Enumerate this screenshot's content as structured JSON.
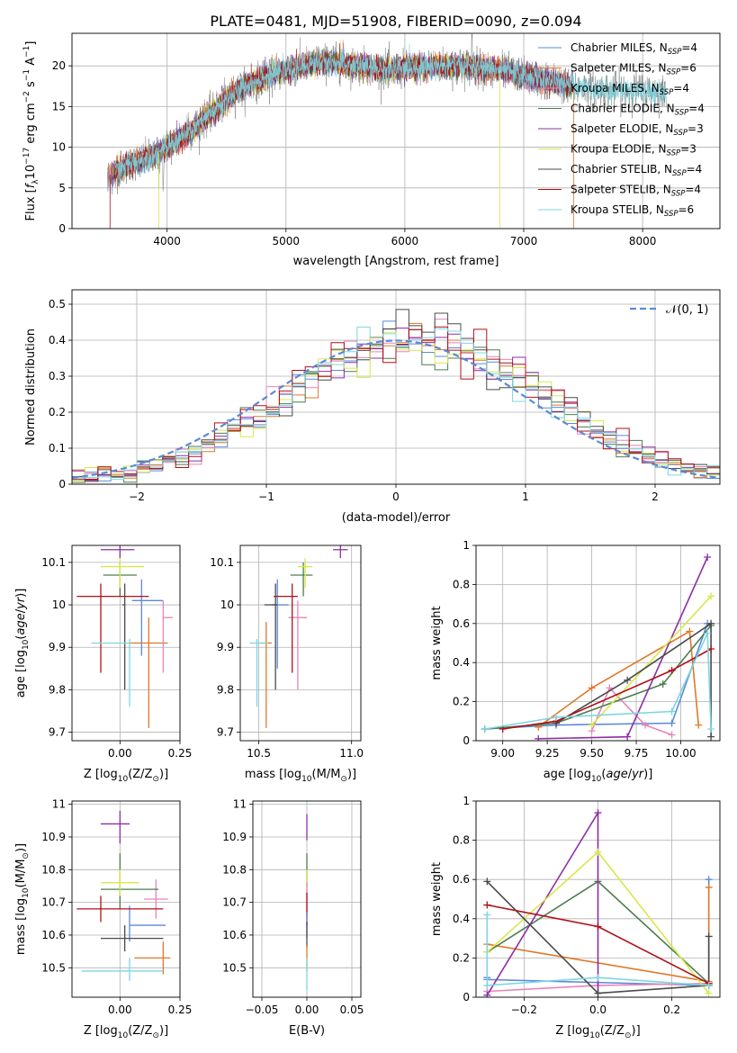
{
  "title": "PLATE=0481, MJD=51908, FIBERID=0090, z=0.094",
  "colors": {
    "chabrier_miles": "#5b8ad6",
    "salpeter_miles": "#e0782a",
    "kroupa_miles": "#e884b8",
    "chabrier_elodie": "#4e7d4e",
    "salpeter_elodie": "#8e2fa6",
    "kroupa_elodie": "#d8e84a",
    "chabrier_stelib": "#4a4a4a",
    "salpeter_stelib": "#b01018",
    "kroupa_stelib": "#7dd6e2",
    "data": "#808080",
    "normal": "#5b8ad6",
    "grid": "#b0b0b0"
  },
  "legend": {
    "entries": [
      {
        "pre": "Chabrier MILES, N",
        "sub": "SSP",
        "post": "=4",
        "color": "chabrier_miles"
      },
      {
        "pre": "Salpeter MILES, N",
        "sub": "SSP",
        "post": "=6",
        "color": "salpeter_miles"
      },
      {
        "pre": "Kroupa MILES, N",
        "sub": "SSP",
        "post": "=4",
        "color": "kroupa_miles"
      },
      {
        "pre": "Chabrier ELODIE, N",
        "sub": "SSP",
        "post": "=4",
        "color": "chabrier_elodie"
      },
      {
        "pre": "Salpeter ELODIE, N",
        "sub": "SSP",
        "post": "=3",
        "color": "salpeter_elodie"
      },
      {
        "pre": "Kroupa ELODIE, N",
        "sub": "SSP",
        "post": "=3",
        "color": "kroupa_elodie"
      },
      {
        "pre": "Chabrier STELIB, N",
        "sub": "SSP",
        "post": "=4",
        "color": "chabrier_stelib"
      },
      {
        "pre": "Salpeter STELIB, N",
        "sub": "SSP",
        "post": "=4",
        "color": "salpeter_stelib"
      },
      {
        "pre": "Kroupa STELIB, N",
        "sub": "SSP",
        "post": "=6",
        "color": "kroupa_stelib"
      }
    ]
  },
  "chart_data": [
    {
      "id": "spectrum",
      "type": "line",
      "xlabel": "wavelength [Angstrom, rest frame]",
      "ylabel": "Flux [f_λ 10^-17 erg cm^-2 s^-1 A^-1]",
      "xlim": [
        3200,
        8650
      ],
      "ylim": [
        0,
        24
      ],
      "xticks": [
        4000,
        5000,
        6000,
        7000,
        8000
      ],
      "yticks": [
        0,
        5,
        10,
        15,
        20
      ],
      "legend_position": "top-right",
      "continuum_anchors": [
        [
          3500,
          6.5
        ],
        [
          3700,
          8
        ],
        [
          3900,
          9
        ],
        [
          4000,
          10
        ],
        [
          4200,
          12
        ],
        [
          4400,
          14.5
        ],
        [
          4600,
          17
        ],
        [
          4800,
          18.5
        ],
        [
          5000,
          19.5
        ],
        [
          5300,
          20.5
        ],
        [
          5600,
          20
        ],
        [
          5900,
          19.5
        ],
        [
          6200,
          20
        ],
        [
          6500,
          20
        ],
        [
          6800,
          19.5
        ],
        [
          7100,
          18.5
        ],
        [
          7400,
          17.5
        ],
        [
          7700,
          17
        ],
        [
          8000,
          17
        ],
        [
          8200,
          16.5
        ]
      ]
    },
    {
      "id": "residuals",
      "type": "bar",
      "xlabel": "(data-model)/error",
      "ylabel": "Normed distribution",
      "xlim": [
        -2.5,
        2.5
      ],
      "ylim": [
        0,
        0.54
      ],
      "xticks": [
        -2,
        -1,
        0,
        1,
        2
      ],
      "yticks": [
        0,
        0.1,
        0.2,
        0.3,
        0.4,
        0.5
      ],
      "bin_width": 0.1,
      "legend": {
        "label": "𝒩(0, 1)",
        "position": "top-right"
      }
    },
    {
      "id": "age_vs_Z",
      "type": "scatter",
      "xlabel": "Z [log10(Z/Z⊙)]",
      "ylabel": "age [log10(age/yr)]",
      "xlim": [
        -0.2,
        0.25
      ],
      "ylim": [
        9.68,
        10.14
      ],
      "xticks": [
        0.0,
        0.25
      ],
      "xticklabels": [
        "0.00",
        "0.25"
      ],
      "yticks": [
        9.7,
        9.8,
        9.9,
        10.0,
        10.1
      ],
      "points": [
        {
          "s": "chabrier_miles",
          "x": 0.09,
          "y": 10.01,
          "xerr": [
            0.04,
            0.09
          ],
          "yerr": [
            0.13,
            0.05
          ]
        },
        {
          "s": "salpeter_miles",
          "x": 0.12,
          "y": 9.91,
          "xerr": [
            0.08,
            0.08
          ],
          "yerr": [
            0.2,
            0.06
          ]
        },
        {
          "s": "kroupa_miles",
          "x": 0.18,
          "y": 9.97,
          "xerr": [
            0.0,
            0.04
          ],
          "yerr": [
            0.13,
            0.04
          ]
        },
        {
          "s": "chabrier_elodie",
          "x": 0.0,
          "y": 10.07,
          "xerr": [
            0.07,
            0.07
          ],
          "yerr": [
            0.05,
            0.03
          ]
        },
        {
          "s": "salpeter_elodie",
          "x": 0.0,
          "y": 10.13,
          "xerr": [
            0.08,
            0.06
          ],
          "yerr": [
            0.02,
            0.01
          ]
        },
        {
          "s": "kroupa_elodie",
          "x": 0.0,
          "y": 10.09,
          "xerr": [
            0.08,
            0.1
          ],
          "yerr": [
            0.05,
            0.02
          ]
        },
        {
          "s": "chabrier_stelib",
          "x": 0.02,
          "y": 10.0,
          "xerr": [
            0.01,
            0.0
          ],
          "yerr": [
            0.2,
            0.05
          ]
        },
        {
          "s": "salpeter_stelib",
          "x": -0.08,
          "y": 10.02,
          "xerr": [
            0.1,
            0.2
          ],
          "yerr": [
            0.18,
            0.03
          ]
        },
        {
          "s": "kroupa_stelib",
          "x": 0.04,
          "y": 9.91,
          "xerr": [
            0.16,
            0.0
          ],
          "yerr": [
            0.15,
            0.01
          ]
        }
      ]
    },
    {
      "id": "age_vs_mass",
      "type": "scatter",
      "xlabel": "mass [log10(M/M⊙)]",
      "ylabel": "",
      "xlim": [
        10.4,
        11.05
      ],
      "ylim": [
        9.68,
        10.14
      ],
      "xticks": [
        10.5,
        11.0
      ],
      "xticklabels": [
        "10.5",
        "11.0"
      ],
      "yticks": [
        9.7,
        9.8,
        9.9,
        10.0,
        10.1
      ],
      "points": [
        {
          "s": "chabrier_miles",
          "x": 10.6,
          "y": 10.0,
          "xerr": [
            0.03,
            0.06
          ],
          "yerr": [
            0.15,
            0.06
          ]
        },
        {
          "s": "salpeter_miles",
          "x": 10.54,
          "y": 9.91,
          "xerr": [
            0.03,
            0.03
          ],
          "yerr": [
            0.2,
            0.05
          ]
        },
        {
          "s": "kroupa_miles",
          "x": 10.71,
          "y": 9.97,
          "xerr": [
            0.05,
            0.05
          ],
          "yerr": [
            0.17,
            0.04
          ]
        },
        {
          "s": "chabrier_elodie",
          "x": 10.74,
          "y": 10.07,
          "xerr": [
            0.07,
            0.05
          ],
          "yerr": [
            0.05,
            0.03
          ]
        },
        {
          "s": "salpeter_elodie",
          "x": 10.94,
          "y": 10.13,
          "xerr": [
            0.04,
            0.04
          ],
          "yerr": [
            0.02,
            0.01
          ]
        },
        {
          "s": "kroupa_elodie",
          "x": 10.75,
          "y": 10.09,
          "xerr": [
            0.04,
            0.04
          ],
          "yerr": [
            0.05,
            0.02
          ]
        },
        {
          "s": "chabrier_stelib",
          "x": 10.59,
          "y": 10.0,
          "xerr": [
            0.06,
            0.01
          ],
          "yerr": [
            0.2,
            0.05
          ]
        },
        {
          "s": "salpeter_stelib",
          "x": 10.68,
          "y": 10.02,
          "xerr": [
            0.1,
            0.03
          ],
          "yerr": [
            0.18,
            0.03
          ]
        },
        {
          "s": "kroupa_stelib",
          "x": 10.49,
          "y": 9.91,
          "xerr": [
            0.04,
            0.06
          ],
          "yerr": [
            0.15,
            0.01
          ]
        }
      ]
    },
    {
      "id": "massweight_vs_age",
      "type": "line",
      "xlabel": "age [log10(age/yr)]",
      "ylabel": "mass weight",
      "xlim": [
        8.85,
        10.22
      ],
      "ylim": [
        0,
        1.0
      ],
      "xticks": [
        9.0,
        9.25,
        9.5,
        9.75,
        10.0
      ],
      "xticklabels": [
        "9.00",
        "9.25",
        "9.50",
        "9.75",
        "10.00"
      ],
      "yticks": [
        0,
        0.2,
        0.4,
        0.6,
        0.8,
        1.0
      ],
      "series": [
        {
          "s": "chabrier_miles",
          "x": [
            8.9,
            9.3,
            9.95,
            10.15
          ],
          "y": [
            0.06,
            0.08,
            0.09,
            0.6
          ]
        },
        {
          "s": "salpeter_miles",
          "x": [
            9.2,
            9.5,
            10.05,
            10.1
          ],
          "y": [
            0.07,
            0.27,
            0.56,
            0.08
          ]
        },
        {
          "s": "kroupa_miles",
          "x": [
            9.5,
            9.6,
            9.8,
            9.95
          ],
          "y": [
            0.05,
            0.27,
            0.08,
            0.03
          ]
        },
        {
          "s": "chabrier_elodie",
          "x": [
            8.9,
            9.3,
            9.9,
            10.17
          ],
          "y": [
            0.06,
            0.09,
            0.29,
            0.59
          ]
        },
        {
          "s": "salpeter_elodie",
          "x": [
            9.2,
            9.7,
            10.15
          ],
          "y": [
            0.01,
            0.02,
            0.94
          ]
        },
        {
          "s": "kroupa_elodie",
          "x": [
            9.5,
            10.17
          ],
          "y": [
            0.08,
            0.74
          ]
        },
        {
          "s": "chabrier_stelib",
          "x": [
            9.3,
            9.7,
            10.17,
            10.17
          ],
          "y": [
            0.09,
            0.31,
            0.6,
            0.02
          ]
        },
        {
          "s": "salpeter_stelib",
          "x": [
            9.0,
            9.3,
            9.95,
            10.17
          ],
          "y": [
            0.06,
            0.1,
            0.36,
            0.47
          ]
        },
        {
          "s": "kroupa_stelib",
          "x": [
            8.9,
            9.3,
            9.95,
            10.15,
            10.17
          ],
          "y": [
            0.06,
            0.12,
            0.15,
            0.55,
            0.06
          ]
        }
      ]
    },
    {
      "id": "mass_vs_Z",
      "type": "scatter",
      "xlabel": "Z [log10(Z/Z⊙)]",
      "ylabel": "mass [log10(M/M⊙)]",
      "xlim": [
        -0.2,
        0.25
      ],
      "ylim": [
        10.41,
        11.01
      ],
      "xticks": [
        0.0,
        0.25
      ],
      "xticklabels": [
        "0.00",
        "0.25"
      ],
      "yticks": [
        10.5,
        10.6,
        10.7,
        10.8,
        10.9,
        11.0
      ],
      "points": [
        {
          "s": "chabrier_miles",
          "x": 0.04,
          "y": 10.63,
          "xerr": [
            0.0,
            0.15
          ],
          "yerr": [
            0.05,
            0.06
          ]
        },
        {
          "s": "salpeter_miles",
          "x": 0.18,
          "y": 10.53,
          "xerr": [
            0.12,
            0.03
          ],
          "yerr": [
            0.05,
            0.05
          ]
        },
        {
          "s": "kroupa_miles",
          "x": 0.15,
          "y": 10.71,
          "xerr": [
            0.05,
            0.05
          ],
          "yerr": [
            0.06,
            0.06
          ]
        },
        {
          "s": "chabrier_elodie",
          "x": 0.0,
          "y": 10.74,
          "xerr": [
            0.08,
            0.16
          ],
          "yerr": [
            0.06,
            0.11
          ]
        },
        {
          "s": "salpeter_elodie",
          "x": 0.0,
          "y": 10.94,
          "xerr": [
            0.08,
            0.04
          ],
          "yerr": [
            0.06,
            0.04
          ]
        },
        {
          "s": "kroupa_elodie",
          "x": 0.0,
          "y": 10.76,
          "xerr": [
            0.08,
            0.08
          ],
          "yerr": [
            0.04,
            0.04
          ]
        },
        {
          "s": "chabrier_stelib",
          "x": 0.02,
          "y": 10.59,
          "xerr": [
            0.1,
            0.16
          ],
          "yerr": [
            0.04,
            0.04
          ]
        },
        {
          "s": "salpeter_stelib",
          "x": -0.08,
          "y": 10.68,
          "xerr": [
            0.1,
            0.26
          ],
          "yerr": [
            0.04,
            0.04
          ]
        },
        {
          "s": "kroupa_stelib",
          "x": 0.04,
          "y": 10.49,
          "xerr": [
            0.2,
            0.14
          ],
          "yerr": [
            0.03,
            0.04
          ]
        }
      ]
    },
    {
      "id": "mass_vs_ebv",
      "type": "scatter",
      "xlabel": "E(B-V)",
      "ylabel": "",
      "xlim": [
        -0.06,
        0.06
      ],
      "ylim": [
        10.41,
        11.01
      ],
      "xticks": [
        -0.05,
        0.0,
        0.05
      ],
      "xticklabels": [
        "−0.05",
        "0.00",
        "0.05"
      ],
      "yticks": [
        10.5,
        10.6,
        10.7,
        10.8,
        10.9,
        11.0
      ],
      "points": [
        {
          "s": "salpeter_elodie",
          "x": 0.0,
          "y": 10.93,
          "xerr": [
            0,
            0
          ],
          "yerr": [
            0.04,
            0.04
          ]
        },
        {
          "s": "chabrier_elodie",
          "x": 0.0,
          "y": 10.8,
          "xerr": [
            0,
            0
          ],
          "yerr": [
            0.05,
            0.05
          ]
        },
        {
          "s": "kroupa_elodie",
          "x": 0.0,
          "y": 10.76,
          "xerr": [
            0,
            0
          ],
          "yerr": [
            0.04,
            0.04
          ]
        },
        {
          "s": "kroupa_miles",
          "x": 0.0,
          "y": 10.71,
          "xerr": [
            0,
            0
          ],
          "yerr": [
            0.05,
            0.05
          ]
        },
        {
          "s": "salpeter_stelib",
          "x": 0.0,
          "y": 10.68,
          "xerr": [
            0,
            0
          ],
          "yerr": [
            0.05,
            0.05
          ]
        },
        {
          "s": "chabrier_miles",
          "x": 0.0,
          "y": 10.63,
          "xerr": [
            0,
            0
          ],
          "yerr": [
            0.04,
            0.04
          ]
        },
        {
          "s": "chabrier_stelib",
          "x": 0.0,
          "y": 10.6,
          "xerr": [
            0,
            0
          ],
          "yerr": [
            0.04,
            0.04
          ]
        },
        {
          "s": "salpeter_miles",
          "x": 0.0,
          "y": 10.53,
          "xerr": [
            0,
            0
          ],
          "yerr": [
            0.04,
            0.04
          ]
        },
        {
          "s": "kroupa_stelib",
          "x": 0.0,
          "y": 10.48,
          "xerr": [
            0,
            0
          ],
          "yerr": [
            0.05,
            0.05
          ]
        }
      ]
    },
    {
      "id": "massweight_vs_Z",
      "type": "line",
      "xlabel": "Z [log10(Z/Z⊙)]",
      "ylabel": "mass weight",
      "xlim": [
        -0.33,
        0.33
      ],
      "ylim": [
        0,
        1.0
      ],
      "xticks": [
        -0.2,
        0.0,
        0.2
      ],
      "xticklabels": [
        "−0.2",
        "0.0",
        "0.2"
      ],
      "yticks": [
        0,
        0.2,
        0.4,
        0.6,
        0.8,
        1.0
      ],
      "series": [
        {
          "s": "chabrier_miles",
          "x": [
            -0.3,
            -0.3,
            0.3,
            0.3
          ],
          "y": [
            0.1,
            0.09,
            0.06,
            0.6
          ]
        },
        {
          "s": "salpeter_miles",
          "x": [
            -0.3,
            0.3,
            0.3
          ],
          "y": [
            0.27,
            0.08,
            0.56
          ]
        },
        {
          "s": "kroupa_miles",
          "x": [
            -0.3,
            0.0,
            0.3
          ],
          "y": [
            0.03,
            0.06,
            0.07
          ]
        },
        {
          "s": "chabrier_elodie",
          "x": [
            -0.3,
            0.0,
            0.3
          ],
          "y": [
            0.23,
            0.59,
            0.07
          ]
        },
        {
          "s": "salpeter_elodie",
          "x": [
            -0.3,
            0.0,
            0.0
          ],
          "y": [
            0.01,
            0.94,
            0.02
          ]
        },
        {
          "s": "kroupa_elodie",
          "x": [
            -0.3,
            0.0,
            0.3
          ],
          "y": [
            0.23,
            0.74,
            0.02
          ]
        },
        {
          "s": "chabrier_stelib",
          "x": [
            -0.3,
            0.0,
            0.3,
            0.3
          ],
          "y": [
            0.59,
            0.02,
            0.06,
            0.31
          ]
        },
        {
          "s": "salpeter_stelib",
          "x": [
            -0.3,
            0.0,
            0.3
          ],
          "y": [
            0.47,
            0.36,
            0.07
          ]
        },
        {
          "s": "kroupa_stelib",
          "x": [
            -0.3,
            -0.3,
            0.0,
            0.3
          ],
          "y": [
            0.42,
            0.06,
            0.1,
            0.06
          ]
        }
      ]
    }
  ]
}
